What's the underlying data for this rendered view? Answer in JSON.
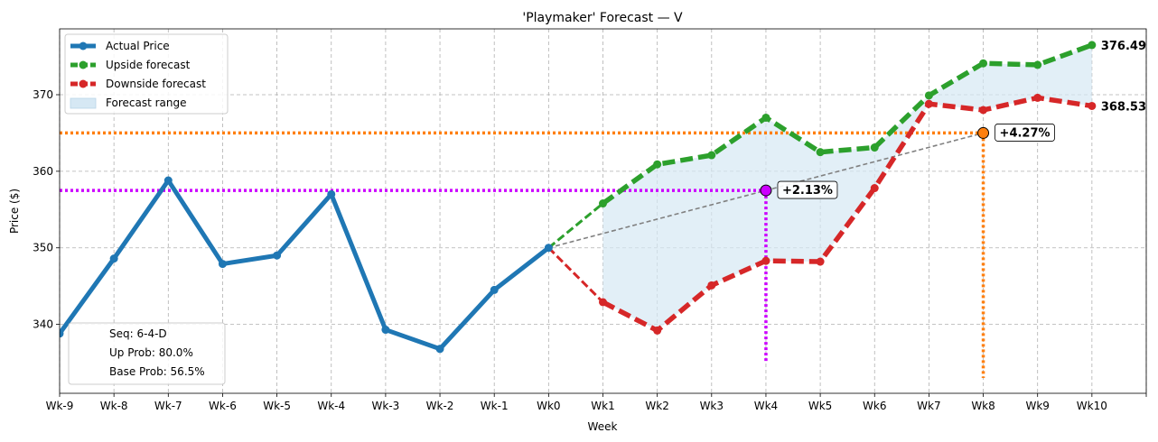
{
  "chart_data": {
    "type": "line",
    "title": "'Playmaker' Forecast — V",
    "xlabel": "Week",
    "ylabel": "Price ($)",
    "categories": [
      "Wk-9",
      "Wk-8",
      "Wk-7",
      "Wk-6",
      "Wk-5",
      "Wk-4",
      "Wk-3",
      "Wk-2",
      "Wk-1",
      "Wk0",
      "Wk1",
      "Wk2",
      "Wk3",
      "Wk4",
      "Wk5",
      "Wk6",
      "Wk7",
      "Wk8",
      "Wk9",
      "Wk10"
    ],
    "xlim": [
      -9,
      11
    ],
    "ylim": [
      331,
      378.6
    ],
    "yticks": [
      340,
      350,
      360,
      370
    ],
    "grid": true,
    "legend_position": "top-left",
    "series": [
      {
        "name": "Actual Price",
        "color": "#1f77b4",
        "style": "solid",
        "x": [
          -9,
          -8,
          -7,
          -6,
          -5,
          -4,
          -3,
          -2,
          -1,
          0
        ],
        "values": [
          338.8,
          348.6,
          358.8,
          347.9,
          349.0,
          357.0,
          339.3,
          336.8,
          344.5,
          350.0
        ]
      },
      {
        "name": "Upside forecast",
        "color": "#2ca02c",
        "style": "dashed",
        "x": [
          0,
          1,
          2,
          3,
          4,
          5,
          6,
          7,
          8,
          9,
          10
        ],
        "values": [
          350.0,
          355.8,
          360.9,
          362.1,
          367.0,
          362.5,
          363.1,
          369.9,
          374.1,
          373.9,
          376.49
        ]
      },
      {
        "name": "Downside forecast",
        "color": "#d62728",
        "style": "dashed",
        "x": [
          0,
          1,
          2,
          3,
          4,
          5,
          6,
          7,
          8,
          9,
          10
        ],
        "values": [
          350.0,
          342.9,
          339.2,
          345.1,
          348.3,
          348.2,
          357.8,
          368.8,
          368.0,
          369.6,
          368.53
        ]
      },
      {
        "name": "Forecast range",
        "color": "#d6e8f4",
        "style": "fill",
        "x": [
          1,
          10
        ]
      }
    ],
    "end_labels": [
      {
        "text": "376.49",
        "color": "#2ca02c",
        "x": 10,
        "y": 376.49
      },
      {
        "text": "368.53",
        "color": "#d62728",
        "x": 10,
        "y": 368.53
      }
    ],
    "markers": [
      {
        "x": 4,
        "y": 357.5,
        "label": "+2.13%",
        "color": "#cc00ff",
        "fill": "#cc00ff",
        "text_color": "#cc00ff",
        "bottom": 335
      },
      {
        "x": 8,
        "y": 365.0,
        "label": "+4.27%",
        "color": "#ff7f0e",
        "fill": "#ff7f0e",
        "text_color": "#ff7f0e",
        "bottom": 333
      }
    ],
    "trend_line": {
      "color": "#808080",
      "points": [
        [
          0,
          350.0
        ],
        [
          8,
          365.0
        ]
      ]
    },
    "info_box": [
      "Seq: 6-4-D",
      "Up Prob: 80.0%",
      "Base Prob: 56.5%"
    ]
  }
}
